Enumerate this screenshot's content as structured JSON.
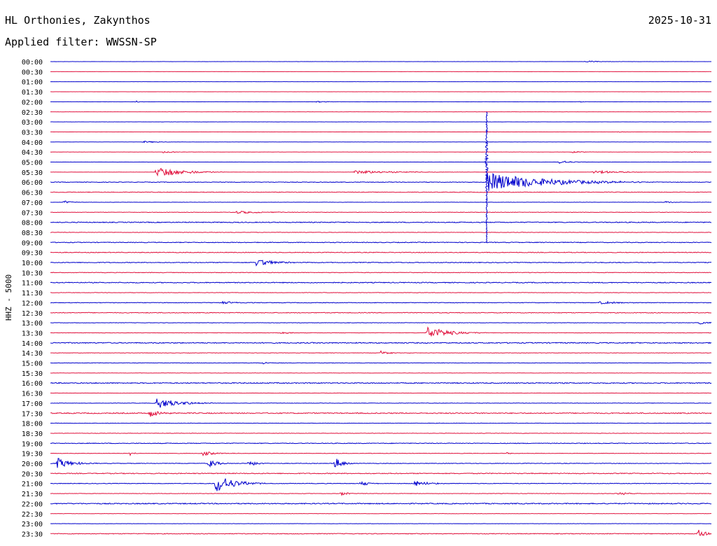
{
  "header": {
    "station": "HL Orthonies, Zakynthos",
    "date": "2025-10-31",
    "filter_label": "Applied filter:",
    "filter_value": "WWSSN-SP"
  },
  "chart_data": {
    "type": "line",
    "title": "HL Orthonies, Zakynthos",
    "ylabel": "HHZ - 5000",
    "row_labels": [
      "00:00",
      "00:30",
      "01:00",
      "01:30",
      "02:00",
      "02:30",
      "03:00",
      "03:30",
      "04:00",
      "04:30",
      "05:00",
      "05:30",
      "06:00",
      "06:30",
      "07:00",
      "07:30",
      "08:00",
      "08:30",
      "09:00",
      "09:30",
      "10:00",
      "10:30",
      "11:00",
      "11:30",
      "12:00",
      "12:30",
      "13:00",
      "13:30",
      "14:00",
      "14:30",
      "15:00",
      "15:30",
      "16:00",
      "16:30",
      "17:00",
      "17:30",
      "18:00",
      "18:30",
      "19:00",
      "19:30",
      "20:00",
      "20:30",
      "21:00",
      "21:30",
      "22:00",
      "22:30",
      "23:00",
      "23:30"
    ],
    "trace_colors": [
      "#0000cc",
      "#e0103c"
    ],
    "row_noise_levels": [
      0.1,
      0.1,
      0.1,
      0.1,
      0.1,
      0.1,
      0.1,
      0.1,
      0.1,
      0.1,
      0.1,
      0.1,
      0.4,
      0.4,
      0.2,
      0.3,
      0.6,
      0.3,
      0.5,
      0.5,
      0.5,
      0.4,
      0.6,
      0.3,
      0.4,
      0.5,
      0.3,
      0.3,
      0.7,
      0.3,
      0.3,
      0.2,
      0.7,
      0.2,
      0.3,
      0.7,
      0.3,
      0.3,
      0.5,
      0.3,
      0.4,
      0.6,
      0.4,
      0.3,
      0.7,
      0.2,
      0.2,
      0.5
    ],
    "events": [
      {
        "row": 0,
        "time_frac": 0.81,
        "amplitude": 1.2,
        "duration": 0.02
      },
      {
        "row": 4,
        "time_frac": 0.13,
        "amplitude": 1.5,
        "duration": 0.005
      },
      {
        "row": 4,
        "time_frac": 0.4,
        "amplitude": 1.2,
        "duration": 0.015
      },
      {
        "row": 4,
        "time_frac": 0.8,
        "amplitude": 1.3,
        "duration": 0.005
      },
      {
        "row": 7,
        "time_frac": 0.86,
        "amplitude": 1.0,
        "duration": 0.008
      },
      {
        "row": 8,
        "time_frac": 0.14,
        "amplitude": 1.5,
        "duration": 0.02
      },
      {
        "row": 9,
        "time_frac": 0.17,
        "amplitude": 1.2,
        "duration": 0.025
      },
      {
        "row": 9,
        "time_frac": 0.79,
        "amplitude": 1.2,
        "duration": 0.02
      },
      {
        "row": 9,
        "time_frac": 0.97,
        "amplitude": 1.0,
        "duration": 0.01
      },
      {
        "row": 10,
        "time_frac": 0.77,
        "amplitude": 2.5,
        "duration": 0.015
      },
      {
        "row": 11,
        "time_frac": 0.16,
        "amplitude": 8,
        "duration": 0.035
      },
      {
        "row": 11,
        "time_frac": 0.46,
        "amplitude": 2.5,
        "duration": 0.06
      },
      {
        "row": 11,
        "time_frac": 0.82,
        "amplitude": 2.5,
        "duration": 0.04
      },
      {
        "row": 12,
        "time_frac": 0.66,
        "amplitude": 14,
        "duration": 0.08
      },
      {
        "row": 14,
        "time_frac": 0.02,
        "amplitude": 2.5,
        "duration": 0.01
      },
      {
        "row": 14,
        "time_frac": 0.93,
        "amplitude": 2,
        "duration": 0.01
      },
      {
        "row": 15,
        "time_frac": 0.28,
        "amplitude": 2,
        "duration": 0.04
      },
      {
        "row": 20,
        "time_frac": 0.31,
        "amplitude": 5,
        "duration": 0.03
      },
      {
        "row": 24,
        "time_frac": 0.26,
        "amplitude": 2,
        "duration": 0.02
      },
      {
        "row": 24,
        "time_frac": 0.83,
        "amplitude": 2,
        "duration": 0.03
      },
      {
        "row": 26,
        "time_frac": 0.98,
        "amplitude": 2,
        "duration": 0.02
      },
      {
        "row": 27,
        "time_frac": 0.35,
        "amplitude": 2.5,
        "duration": 0.01
      },
      {
        "row": 27,
        "time_frac": 0.57,
        "amplitude": 9,
        "duration": 0.03
      },
      {
        "row": 29,
        "time_frac": 0.5,
        "amplitude": 3,
        "duration": 0.01
      },
      {
        "row": 30,
        "time_frac": 0.32,
        "amplitude": 2,
        "duration": 0.01
      },
      {
        "row": 34,
        "time_frac": 0.16,
        "amplitude": 8,
        "duration": 0.03
      },
      {
        "row": 35,
        "time_frac": 0.15,
        "amplitude": 6,
        "duration": 0.015
      },
      {
        "row": 39,
        "time_frac": 0.12,
        "amplitude": 4,
        "duration": 0.005
      },
      {
        "row": 39,
        "time_frac": 0.23,
        "amplitude": 3,
        "duration": 0.02
      },
      {
        "row": 39,
        "time_frac": 0.69,
        "amplitude": 2,
        "duration": 0.005
      },
      {
        "row": 40,
        "time_frac": 0.01,
        "amplitude": 8,
        "duration": 0.02
      },
      {
        "row": 40,
        "time_frac": 0.24,
        "amplitude": 7,
        "duration": 0.01
      },
      {
        "row": 40,
        "time_frac": 0.3,
        "amplitude": 6,
        "duration": 0.01
      },
      {
        "row": 40,
        "time_frac": 0.43,
        "amplitude": 9,
        "duration": 0.01
      },
      {
        "row": 42,
        "time_frac": 0.25,
        "amplitude": 14,
        "duration": 0.025
      },
      {
        "row": 42,
        "time_frac": 0.47,
        "amplitude": 4,
        "duration": 0.01
      },
      {
        "row": 42,
        "time_frac": 0.55,
        "amplitude": 4,
        "duration": 0.02
      },
      {
        "row": 43,
        "time_frac": 0.44,
        "amplitude": 3,
        "duration": 0.01
      },
      {
        "row": 43,
        "time_frac": 0.86,
        "amplitude": 3,
        "duration": 0.01
      },
      {
        "row": 47,
        "time_frac": 0.98,
        "amplitude": 9,
        "duration": 0.01
      }
    ]
  }
}
